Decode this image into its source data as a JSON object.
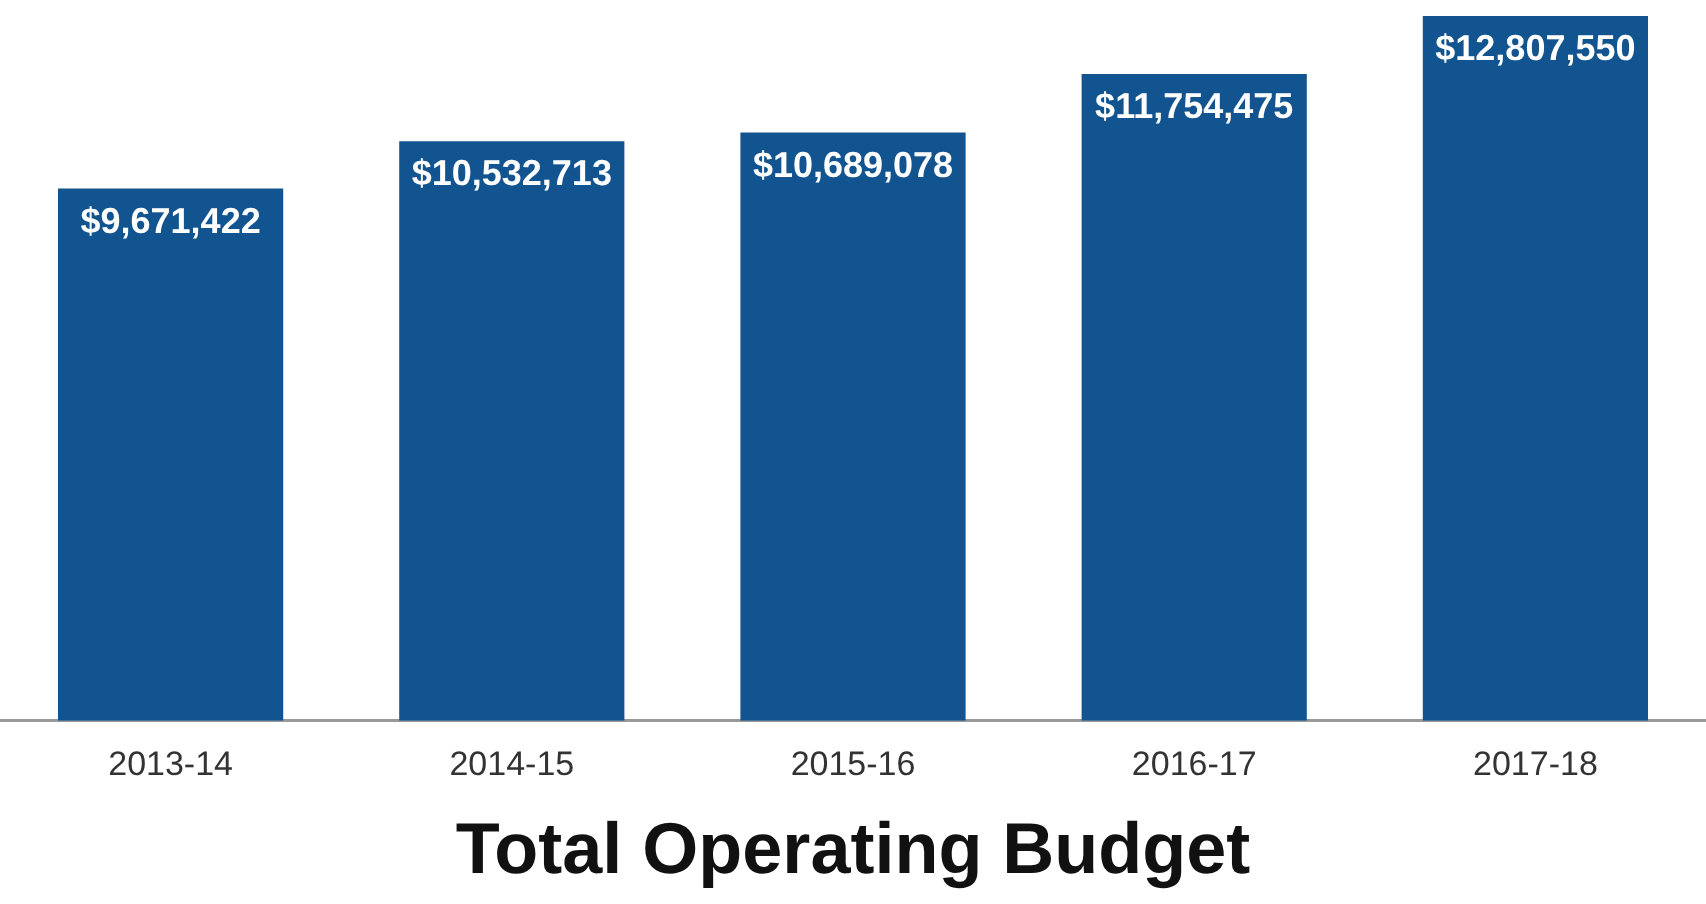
{
  "chart_data": {
    "type": "bar",
    "title": "Total Operating Budget",
    "categories": [
      "2013-14",
      "2014-15",
      "2015-16",
      "2016-17",
      "2017-18"
    ],
    "values": [
      9671422,
      10532713,
      10689078,
      11754475,
      12807550
    ],
    "value_labels": [
      "$9,671,422",
      "$10,532,713",
      "$10,689,078",
      "$11,754,475",
      "$12,807,550"
    ],
    "color": "#11548f",
    "tick_labels": "x",
    "grid": false,
    "legend": false
  }
}
